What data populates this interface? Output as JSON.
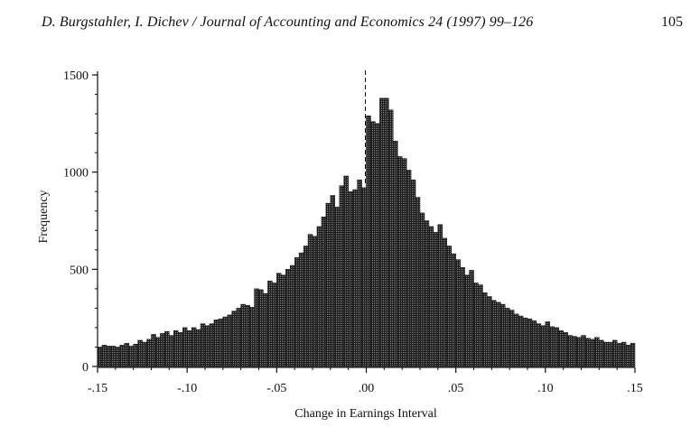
{
  "page": {
    "running_head": "D. Burgstahler, I. Dichev / Journal of Accounting and Economics 24 (1997) 99–126",
    "page_number": "105"
  },
  "chart_data": {
    "type": "bar",
    "title": "",
    "xlabel": "Change in Earnings Interval",
    "ylabel": "Frequency",
    "xlim": [
      -0.15,
      0.15
    ],
    "ylim": [
      0,
      1500
    ],
    "bin_width": 0.0025,
    "x_ticks": [
      -0.15,
      -0.1,
      -0.05,
      0.0,
      0.05,
      0.1,
      0.15
    ],
    "x_tick_labels": [
      "-.15",
      "-.10",
      "-.05",
      ".00",
      ".05",
      ".10",
      ".15"
    ],
    "y_ticks": [
      0,
      500,
      1000,
      1500
    ],
    "y_tick_labels": [
      "0",
      "500",
      "1000",
      "1500"
    ],
    "zero_marker": "dashed vertical line at .00",
    "fill": "dark stippled",
    "grid": false,
    "legend": "none",
    "x": [
      -0.14875,
      -0.14625,
      -0.14375,
      -0.14125,
      -0.13875,
      -0.13625,
      -0.13375,
      -0.13125,
      -0.12875,
      -0.12625,
      -0.12375,
      -0.12125,
      -0.11875,
      -0.11625,
      -0.11375,
      -0.11125,
      -0.10875,
      -0.10625,
      -0.10375,
      -0.10125,
      -0.09875,
      -0.09625,
      -0.09375,
      -0.09125,
      -0.08875,
      -0.08625,
      -0.08375,
      -0.08125,
      -0.07875,
      -0.07625,
      -0.07375,
      -0.07125,
      -0.06875,
      -0.06625,
      -0.06375,
      -0.06125,
      -0.05875,
      -0.05625,
      -0.05375,
      -0.05125,
      -0.04875,
      -0.04625,
      -0.04375,
      -0.04125,
      -0.03875,
      -0.03625,
      -0.03375,
      -0.03125,
      -0.02875,
      -0.02625,
      -0.02375,
      -0.02125,
      -0.01875,
      -0.01625,
      -0.01375,
      -0.01125,
      -0.00875,
      -0.00625,
      -0.00375,
      -0.00125,
      0.00125,
      0.00375,
      0.00625,
      0.00875,
      0.01125,
      0.01375,
      0.01625,
      0.01875,
      0.02125,
      0.02375,
      0.02625,
      0.02875,
      0.03125,
      0.03375,
      0.03625,
      0.03875,
      0.04125,
      0.04375,
      0.04625,
      0.04875,
      0.05125,
      0.05375,
      0.05625,
      0.05875,
      0.06125,
      0.06375,
      0.06625,
      0.06875,
      0.07125,
      0.07375,
      0.07625,
      0.07875,
      0.08125,
      0.08375,
      0.08625,
      0.08875,
      0.09125,
      0.09375,
      0.09625,
      0.09875,
      0.10125,
      0.10375,
      0.10625,
      0.10875,
      0.11125,
      0.11375,
      0.11625,
      0.11875,
      0.12125,
      0.12375,
      0.12625,
      0.12875,
      0.13125,
      0.13375,
      0.13625,
      0.13875,
      0.14125,
      0.14375,
      0.14625,
      0.14875
    ],
    "values": [
      100,
      110,
      105,
      105,
      100,
      110,
      120,
      105,
      115,
      135,
      125,
      140,
      165,
      150,
      170,
      180,
      160,
      185,
      175,
      200,
      185,
      200,
      190,
      220,
      210,
      220,
      240,
      245,
      255,
      265,
      285,
      300,
      320,
      315,
      305,
      400,
      395,
      375,
      440,
      430,
      480,
      470,
      500,
      520,
      560,
      585,
      620,
      680,
      670,
      720,
      770,
      840,
      880,
      820,
      930,
      980,
      900,
      910,
      960,
      920,
      1290,
      1260,
      1250,
      1380,
      1380,
      1320,
      1160,
      1080,
      1070,
      1010,
      960,
      870,
      790,
      750,
      720,
      690,
      730,
      660,
      620,
      580,
      550,
      510,
      470,
      495,
      430,
      420,
      380,
      360,
      340,
      330,
      320,
      300,
      290,
      270,
      260,
      250,
      245,
      235,
      220,
      210,
      230,
      205,
      200,
      185,
      175,
      160,
      155,
      150,
      160,
      145,
      140,
      150,
      135,
      125,
      125,
      135,
      120,
      125,
      110,
      120
    ]
  }
}
